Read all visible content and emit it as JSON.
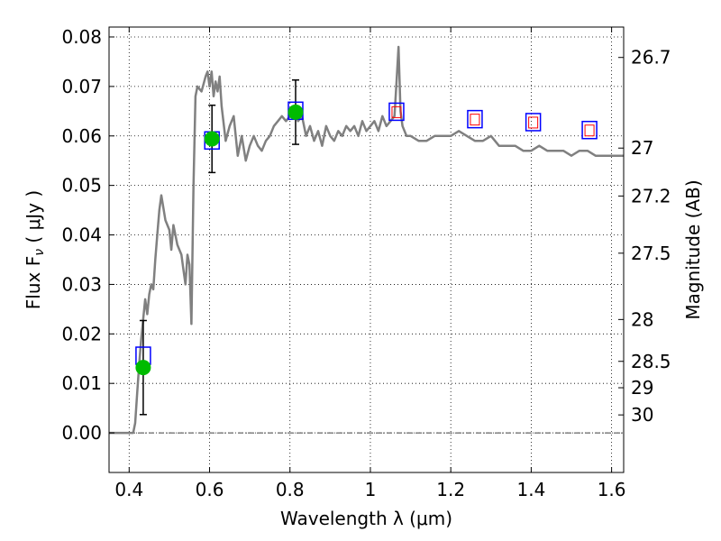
{
  "chart_data": {
    "type": "scatter",
    "xlabel": "Wavelength  λ (μm)",
    "ylabel": "Flux  F",
    "ylabel_sub": "ν",
    "ylabel_unit": "  ( μJy )",
    "y2label": "Magnitude (AB)",
    "xlim": [
      0.35,
      1.63
    ],
    "ylim": [
      -0.008,
      0.082
    ],
    "grid": true,
    "x_ticks": [
      {
        "value": 0.4,
        "label": "0.4"
      },
      {
        "value": 0.6,
        "label": "0.6"
      },
      {
        "value": 0.8,
        "label": "0.8"
      },
      {
        "value": 1.0,
        "label": "1"
      },
      {
        "value": 1.2,
        "label": "1.2"
      },
      {
        "value": 1.4,
        "label": "1.4"
      },
      {
        "value": 1.6,
        "label": "1.6"
      }
    ],
    "y_ticks": [
      {
        "value": 0.0,
        "label": "0.00"
      },
      {
        "value": 0.01,
        "label": "0.01"
      },
      {
        "value": 0.02,
        "label": "0.02"
      },
      {
        "value": 0.03,
        "label": "0.03"
      },
      {
        "value": 0.04,
        "label": "0.04"
      },
      {
        "value": 0.05,
        "label": "0.05"
      },
      {
        "value": 0.06,
        "label": "0.06"
      },
      {
        "value": 0.07,
        "label": "0.07"
      },
      {
        "value": 0.08,
        "label": "0.08"
      }
    ],
    "y2_ticks": [
      {
        "value": 26.7,
        "label": "26.7"
      },
      {
        "value": 27.0,
        "label": "27"
      },
      {
        "value": 27.2,
        "label": "27.2"
      },
      {
        "value": 27.5,
        "label": "27.5"
      },
      {
        "value": 28.0,
        "label": "28"
      },
      {
        "value": 28.5,
        "label": "28.5"
      },
      {
        "value": 29.0,
        "label": "29"
      },
      {
        "value": 30.0,
        "label": "30"
      }
    ],
    "colors": {
      "model": "#808080",
      "observed": "#00bb00",
      "model_box": "#0000ff",
      "model_box_inner": "#ff0000",
      "errorbar": "#000000",
      "zero_line": "#404040"
    },
    "model_spectrum": {
      "x": [
        0.35,
        0.36,
        0.38,
        0.4,
        0.41,
        0.415,
        0.42,
        0.425,
        0.43,
        0.435,
        0.44,
        0.445,
        0.45,
        0.455,
        0.46,
        0.465,
        0.47,
        0.475,
        0.48,
        0.49,
        0.5,
        0.505,
        0.51,
        0.52,
        0.53,
        0.535,
        0.54,
        0.545,
        0.55,
        0.555,
        0.56,
        0.565,
        0.57,
        0.58,
        0.59,
        0.595,
        0.6,
        0.605,
        0.61,
        0.615,
        0.62,
        0.625,
        0.63,
        0.64,
        0.65,
        0.66,
        0.67,
        0.68,
        0.69,
        0.7,
        0.71,
        0.72,
        0.73,
        0.74,
        0.75,
        0.76,
        0.77,
        0.78,
        0.79,
        0.8,
        0.81,
        0.82,
        0.83,
        0.84,
        0.85,
        0.86,
        0.87,
        0.88,
        0.89,
        0.9,
        0.91,
        0.92,
        0.93,
        0.94,
        0.95,
        0.96,
        0.97,
        0.98,
        0.99,
        1.0,
        1.01,
        1.02,
        1.03,
        1.04,
        1.05,
        1.06,
        1.065,
        1.07,
        1.075,
        1.08,
        1.09,
        1.1,
        1.12,
        1.14,
        1.16,
        1.18,
        1.2,
        1.22,
        1.24,
        1.26,
        1.28,
        1.3,
        1.32,
        1.34,
        1.36,
        1.38,
        1.4,
        1.42,
        1.44,
        1.46,
        1.48,
        1.5,
        1.52,
        1.54,
        1.56,
        1.58,
        1.6,
        1.63
      ],
      "y": [
        0.0,
        0.0,
        0.0,
        0.0,
        0.0,
        0.002,
        0.008,
        0.014,
        0.019,
        0.023,
        0.027,
        0.024,
        0.028,
        0.03,
        0.029,
        0.035,
        0.04,
        0.045,
        0.048,
        0.043,
        0.041,
        0.037,
        0.042,
        0.038,
        0.036,
        0.033,
        0.03,
        0.036,
        0.034,
        0.022,
        0.05,
        0.068,
        0.07,
        0.069,
        0.072,
        0.073,
        0.07,
        0.073,
        0.068,
        0.071,
        0.069,
        0.072,
        0.066,
        0.059,
        0.062,
        0.064,
        0.056,
        0.06,
        0.055,
        0.058,
        0.06,
        0.058,
        0.057,
        0.059,
        0.06,
        0.062,
        0.063,
        0.064,
        0.063,
        0.064,
        0.066,
        0.063,
        0.064,
        0.06,
        0.062,
        0.059,
        0.061,
        0.058,
        0.062,
        0.06,
        0.059,
        0.061,
        0.06,
        0.062,
        0.061,
        0.062,
        0.06,
        0.063,
        0.061,
        0.062,
        0.063,
        0.061,
        0.064,
        0.062,
        0.063,
        0.064,
        0.071,
        0.078,
        0.065,
        0.062,
        0.06,
        0.06,
        0.059,
        0.059,
        0.06,
        0.06,
        0.06,
        0.061,
        0.06,
        0.059,
        0.059,
        0.06,
        0.058,
        0.058,
        0.058,
        0.057,
        0.057,
        0.058,
        0.057,
        0.057,
        0.057,
        0.056,
        0.057,
        0.057,
        0.056,
        0.056,
        0.056,
        0.056
      ]
    },
    "observed": [
      {
        "x": 0.435,
        "y": 0.0132,
        "err": 0.0095
      },
      {
        "x": 0.606,
        "y": 0.0594,
        "err": 0.0068
      },
      {
        "x": 0.814,
        "y": 0.0648,
        "err": 0.0065
      }
    ],
    "model_photometry": [
      {
        "x": 0.435,
        "y": 0.0155,
        "inner": false
      },
      {
        "x": 0.606,
        "y": 0.059,
        "inner": false
      },
      {
        "x": 0.814,
        "y": 0.065,
        "inner": false
      },
      {
        "x": 1.065,
        "y": 0.0648,
        "inner": true
      },
      {
        "x": 1.26,
        "y": 0.0633,
        "inner": true
      },
      {
        "x": 1.405,
        "y": 0.0627,
        "inner": true
      },
      {
        "x": 1.545,
        "y": 0.0611,
        "inner": true
      }
    ]
  }
}
